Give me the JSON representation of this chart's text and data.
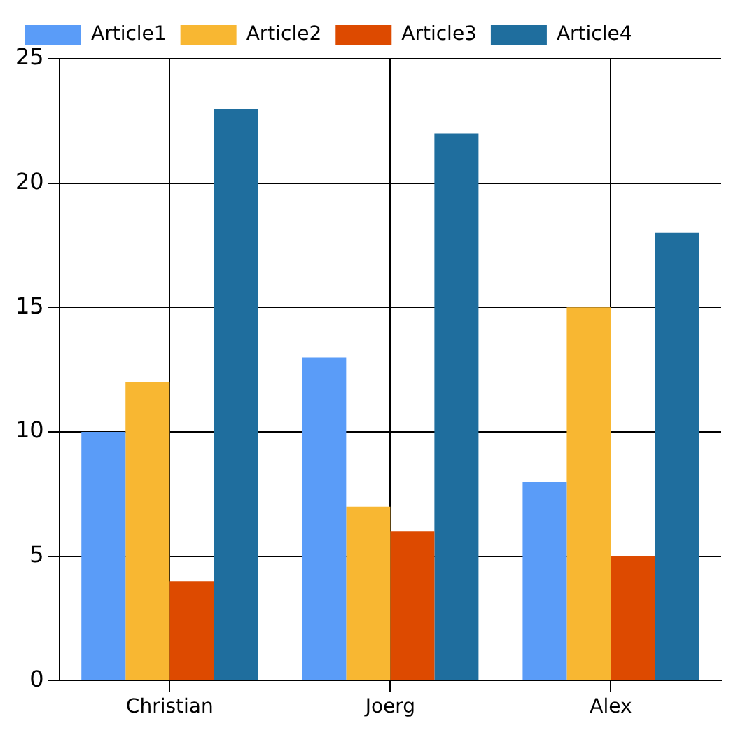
{
  "chart_data": {
    "type": "bar",
    "categories": [
      "Christian",
      "Joerg",
      "Alex"
    ],
    "series": [
      {
        "name": "Article1",
        "color": "#5a9cf8",
        "values": [
          10,
          13,
          8
        ]
      },
      {
        "name": "Article2",
        "color": "#f8b732",
        "values": [
          12,
          7,
          15
        ]
      },
      {
        "name": "Article3",
        "color": "#dd4a00",
        "values": [
          4,
          6,
          5
        ]
      },
      {
        "name": "Article4",
        "color": "#1f6e9e",
        "values": [
          23,
          22,
          18
        ]
      }
    ],
    "ylim": [
      0,
      25
    ],
    "yticks": [
      0,
      5,
      10,
      15,
      20,
      25
    ],
    "grid": true,
    "legend": "top left"
  }
}
